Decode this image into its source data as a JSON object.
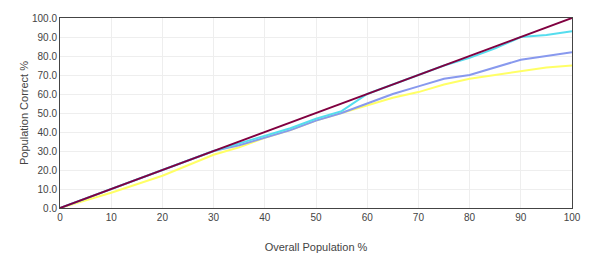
{
  "chart_data": {
    "type": "line",
    "xlabel": "Overall Population %",
    "ylabel": "Population Correct %",
    "xlim": [
      0,
      100
    ],
    "ylim": [
      0,
      100
    ],
    "xticks": [
      0,
      10,
      20,
      30,
      40,
      50,
      60,
      70,
      80,
      90,
      100
    ],
    "yticks": [
      {
        "value": 0,
        "label": "0.0"
      },
      {
        "value": 10,
        "label": "10.0"
      },
      {
        "value": 20,
        "label": "20.0"
      },
      {
        "value": 30,
        "label": "30.0"
      },
      {
        "value": 40,
        "label": "40.0"
      },
      {
        "value": 50,
        "label": "50.0"
      },
      {
        "value": 60,
        "label": "60.0"
      },
      {
        "value": 70,
        "label": "70.0"
      },
      {
        "value": 80,
        "label": "80.0"
      },
      {
        "value": 90,
        "label": "90.0"
      },
      {
        "value": 100,
        "label": "100.0"
      }
    ],
    "grid": true,
    "series": [
      {
        "color": "#ffff66",
        "x": [
          0,
          10,
          20,
          30,
          35,
          40,
          45,
          50,
          55,
          60,
          65,
          70,
          75,
          80,
          85,
          90,
          95,
          100
        ],
        "values": [
          0,
          8,
          17,
          28,
          32,
          37,
          41,
          46,
          50,
          54,
          58,
          61,
          65,
          68,
          70,
          72,
          74,
          75
        ]
      },
      {
        "color": "#8899ee",
        "x": [
          0,
          30,
          35,
          40,
          45,
          50,
          55,
          60,
          65,
          70,
          75,
          80,
          85,
          90,
          95,
          100
        ],
        "values": [
          0,
          30,
          33,
          37,
          41,
          46,
          50,
          55,
          60,
          64,
          68,
          70,
          74,
          78,
          80,
          82
        ]
      },
      {
        "color": "#55ddee",
        "x": [
          0,
          30,
          35,
          40,
          45,
          50,
          55,
          60,
          65,
          70,
          75,
          80,
          85,
          90,
          95,
          100
        ],
        "values": [
          0,
          30,
          34,
          38,
          42,
          47,
          51,
          60,
          65,
          70,
          75,
          79,
          84,
          90,
          91,
          93
        ]
      },
      {
        "color": "#800040",
        "x": [
          0,
          100
        ],
        "values": [
          0,
          100
        ]
      }
    ]
  }
}
